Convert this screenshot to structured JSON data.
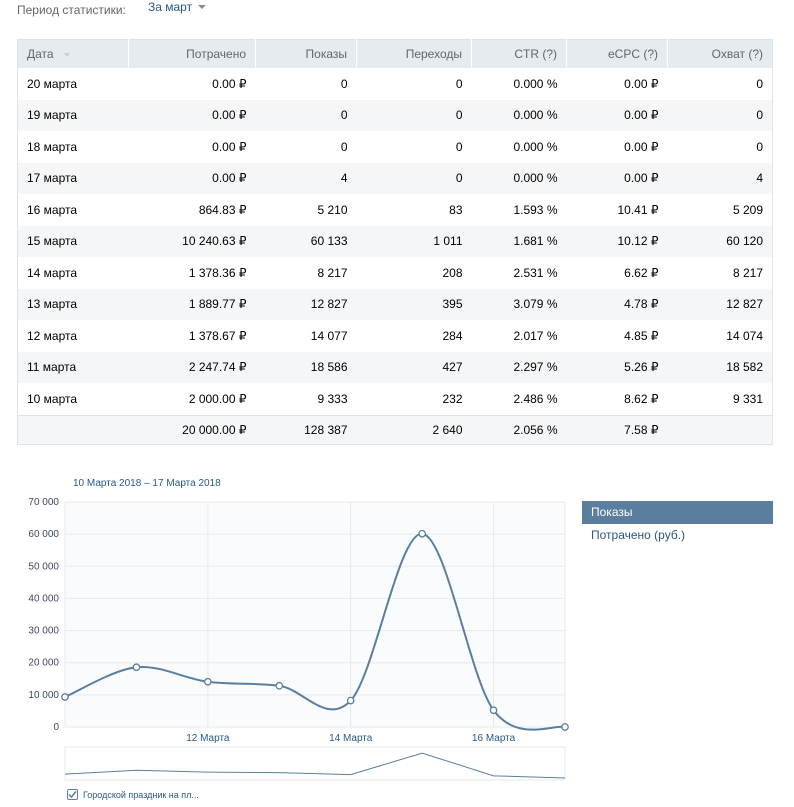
{
  "period": {
    "label": "Период статистики:",
    "selected": "За март"
  },
  "table": {
    "headers": [
      "Дата",
      "Потрачено",
      "Показы",
      "Переходы",
      "CTR (?)",
      "eCPC (?)",
      "Охват (?)"
    ],
    "rows": [
      [
        "20 марта",
        "0.00 ₽",
        "0",
        "0",
        "0.000 %",
        "0.00 ₽",
        "0"
      ],
      [
        "19 марта",
        "0.00 ₽",
        "0",
        "0",
        "0.000 %",
        "0.00 ₽",
        "0"
      ],
      [
        "18 марта",
        "0.00 ₽",
        "0",
        "0",
        "0.000 %",
        "0.00 ₽",
        "0"
      ],
      [
        "17 марта",
        "0.00 ₽",
        "4",
        "0",
        "0.000 %",
        "0.00 ₽",
        "4"
      ],
      [
        "16 марта",
        "864.83 ₽",
        "5 210",
        "83",
        "1.593 %",
        "10.41 ₽",
        "5 209"
      ],
      [
        "15 марта",
        "10 240.63 ₽",
        "60 133",
        "1 011",
        "1.681 %",
        "10.12 ₽",
        "60 120"
      ],
      [
        "14 марта",
        "1 378.36 ₽",
        "8 217",
        "208",
        "2.531 %",
        "6.62 ₽",
        "8 217"
      ],
      [
        "13 марта",
        "1 889.77 ₽",
        "12 827",
        "395",
        "3.079 %",
        "4.78 ₽",
        "12 827"
      ],
      [
        "12 марта",
        "1 378.67 ₽",
        "14 077",
        "284",
        "2.017 %",
        "4.85 ₽",
        "14 074"
      ],
      [
        "11 марта",
        "2 247.74 ₽",
        "18 586",
        "427",
        "2.297 %",
        "5.26 ₽",
        "18 582"
      ],
      [
        "10 марта",
        "2 000.00 ₽",
        "9 333",
        "232",
        "2.486 %",
        "8.62 ₽",
        "9 331"
      ]
    ],
    "totals": [
      "",
      "20 000.00 ₽",
      "128 387",
      "2 640",
      "2.056 %",
      "7.58 ₽",
      ""
    ]
  },
  "chart_data": {
    "type": "line",
    "title": "10 Марта 2018 – 17 Марта 2018",
    "x": [
      "10 Марта",
      "11 Марта",
      "12 Марта",
      "13 Марта",
      "14 Марта",
      "15 Марта",
      "16 Марта",
      "17 Марта"
    ],
    "xtick_labels": [
      "12 Марта",
      "14 Марта",
      "16 Марта"
    ],
    "yticks": [
      "0",
      "10 000",
      "20 000",
      "30 000",
      "40 000",
      "50 000",
      "60 000",
      "70 000"
    ],
    "ylim": [
      0,
      70000
    ],
    "grid": true,
    "series": [
      {
        "name": "Показы",
        "values": [
          9333,
          18586,
          14077,
          12827,
          8217,
          60133,
          5210,
          4
        ]
      }
    ],
    "colors": {
      "line": "#5b7ea0",
      "grid": "#e7e9ec"
    }
  },
  "legend": {
    "items": [
      "Показы",
      "Потрачено (руб.)"
    ],
    "active_index": 0
  },
  "campaign": {
    "label": "Городской праздник на пл...",
    "checked": true
  },
  "colors": {
    "link": "#2a5885",
    "header_bg": "#e6ebf0",
    "row_alt": "#f5f6f7",
    "accent": "#5b7ea0"
  }
}
